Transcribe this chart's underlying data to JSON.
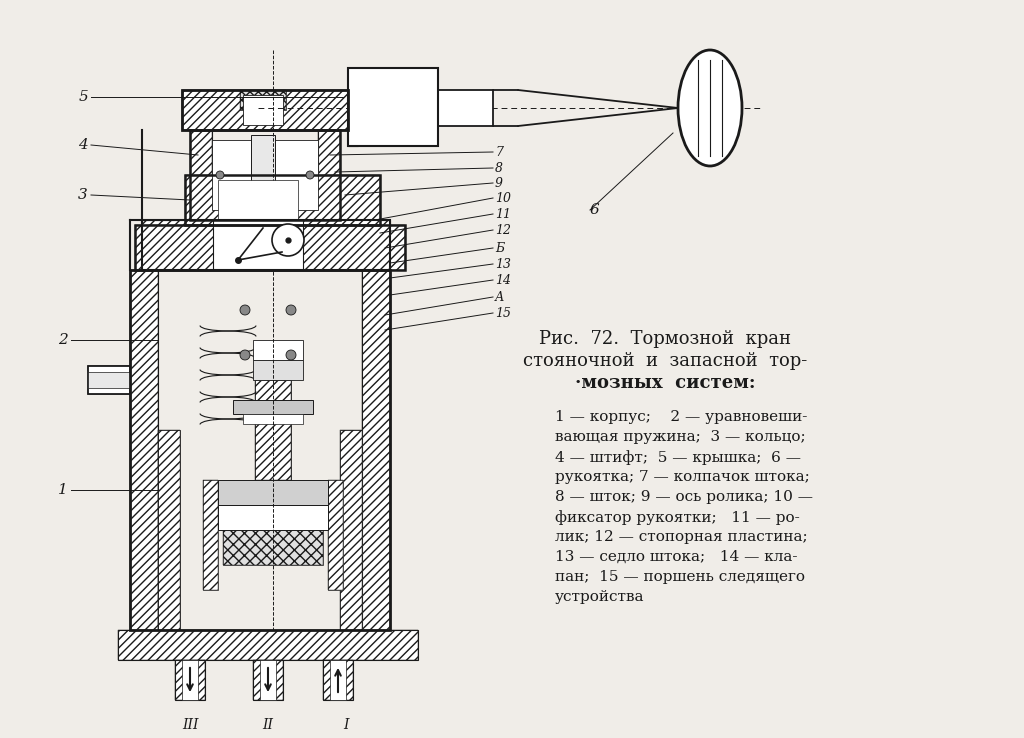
{
  "bg_color": "#f0ede8",
  "line_color": "#1a1a1a",
  "title_line1": "Рис.  72.  Тормозной  кран",
  "title_line2": "стояночной  и  запасной  тор-",
  "title_line3": "·мозных  систем:",
  "desc_line1": "1 — корпус;    2 — уравновеши-",
  "desc_line2": "вающая пружина;  3 — кольцо;",
  "desc_line3": "4 — штифт;  5 — крышка;  6 —",
  "desc_line4": "рукоятка; 7 — колпачок штока;",
  "desc_line5": "8 — шток; 9 — ось ролика; 10 —",
  "desc_line6": "фиксатор рукоятки;   11 — ро-",
  "desc_line7": "лик; 12 — стопорная пластина;",
  "desc_line8": "13 — седло штока;   14 — кла-",
  "desc_line9": "пан;  15 — поршень следящего",
  "desc_line10": "устройства"
}
